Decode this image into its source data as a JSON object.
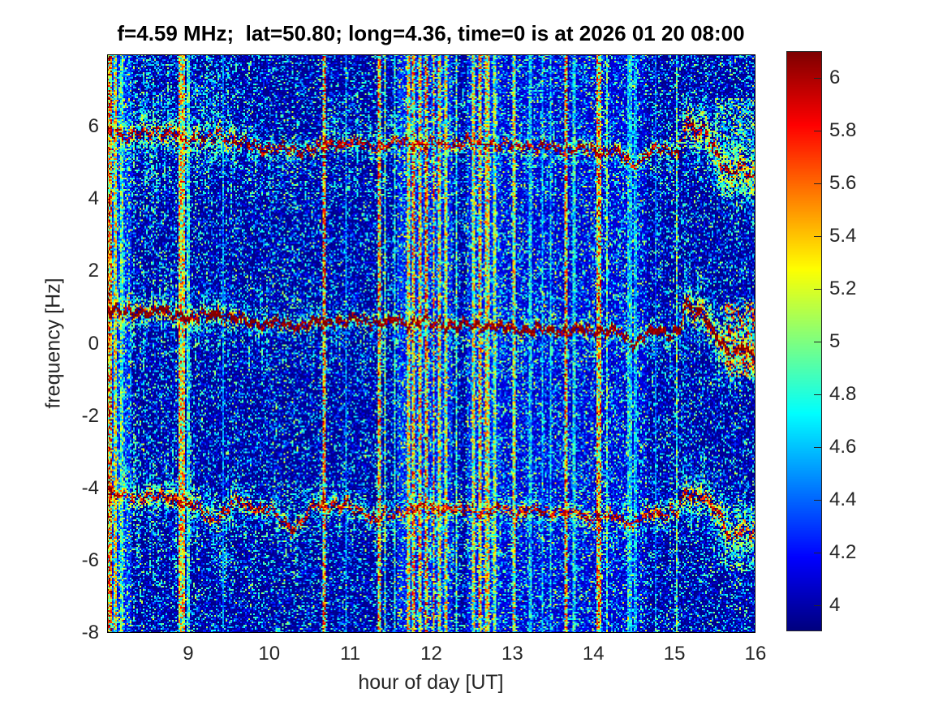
{
  "title": "f=4.59 MHz;  lat=50.80; long=4.36, time=0 is at 2026 01 20 08:00",
  "axes": {
    "xlabel": "hour of day [UT]",
    "ylabel": "frequency [Hz]",
    "xticks": [
      9,
      10,
      11,
      12,
      13,
      14,
      15,
      16
    ],
    "yticks": [
      6,
      4,
      2,
      0,
      -2,
      -4,
      -6,
      -8
    ],
    "xlim": [
      8,
      16
    ],
    "ylim": [
      -8,
      8
    ],
    "tick_color": "#262626",
    "box_color": "#000000"
  },
  "colorbar": {
    "ticks": [
      6,
      5.8,
      5.6,
      5.4,
      5.2,
      5,
      4.8,
      4.6,
      4.4,
      4.2,
      4
    ],
    "cmin": 3.9,
    "cmax": 6.1,
    "colormap": "jet"
  },
  "chart_data": {
    "type": "heatmap",
    "title": "f=4.59 MHz;  lat=50.80; long=4.36, time=0 is at 2026 01 20 08:00",
    "xlabel": "hour of day [UT]",
    "ylabel": "frequency [Hz]",
    "xlim": [
      8,
      16
    ],
    "ylim": [
      -8,
      8
    ],
    "clim": [
      3.9,
      6.1
    ],
    "colormap": "jet",
    "xticks": [
      9,
      10,
      11,
      12,
      13,
      14,
      15,
      16
    ],
    "yticks": [
      6,
      4,
      2,
      0,
      -2,
      -4,
      -6,
      -8
    ],
    "colorbar_ticks": [
      6,
      5.8,
      5.6,
      5.4,
      5.2,
      5,
      4.8,
      4.6,
      4.4,
      4.2,
      4
    ],
    "description": "HF Doppler sounding spectrogram, 4.59 MHz, Brussels (lat 50.80, long 4.36). Blue noise background (~4.0) with three wavy Doppler traces near +5.5 Hz, +0.6 Hz and -4.6 Hz, and many vertical broadband interference stripes reaching values 5.5-6.1.",
    "doppler_traces": [
      {
        "name": "upper-trace",
        "core_prob": 0.6,
        "core_amp": 1.75,
        "waypoints": [
          [
            8.0,
            5.9
          ],
          [
            8.3,
            5.75
          ],
          [
            8.6,
            5.9
          ],
          [
            9.0,
            5.65
          ],
          [
            9.4,
            5.75
          ],
          [
            9.7,
            5.5
          ],
          [
            10.0,
            5.45
          ],
          [
            10.4,
            5.35
          ],
          [
            10.7,
            5.5
          ],
          [
            11.0,
            5.55
          ],
          [
            11.3,
            5.5
          ],
          [
            11.7,
            5.55
          ],
          [
            12.0,
            5.5
          ],
          [
            12.4,
            5.55
          ],
          [
            12.8,
            5.5
          ],
          [
            13.2,
            5.45
          ],
          [
            13.6,
            5.4
          ],
          [
            14.0,
            5.35
          ],
          [
            14.3,
            5.3
          ],
          [
            14.5,
            4.95
          ],
          [
            14.7,
            5.3
          ],
          [
            14.9,
            5.35
          ],
          [
            15.05,
            5.3
          ],
          [
            15.15,
            6.2
          ],
          [
            15.25,
            5.8
          ],
          [
            15.35,
            6.0
          ],
          [
            15.45,
            5.6
          ],
          [
            15.6,
            4.9
          ],
          [
            15.7,
            4.6
          ],
          [
            15.85,
            5.0
          ],
          [
            16.0,
            4.5
          ]
        ],
        "sigma_intervals": [
          [
            8,
            9.6,
            0.5
          ],
          [
            9.6,
            15.1,
            0.28
          ],
          [
            15.1,
            16,
            0.8
          ]
        ]
      },
      {
        "name": "middle-trace",
        "core_prob": 0.8,
        "core_amp": 1.95,
        "waypoints": [
          [
            8.0,
            1.0
          ],
          [
            8.3,
            0.8
          ],
          [
            8.6,
            0.95
          ],
          [
            9.0,
            0.7
          ],
          [
            9.4,
            0.8
          ],
          [
            9.7,
            0.6
          ],
          [
            10.0,
            0.55
          ],
          [
            10.4,
            0.5
          ],
          [
            10.7,
            0.6
          ],
          [
            11.0,
            0.65
          ],
          [
            11.3,
            0.6
          ],
          [
            11.7,
            0.6
          ],
          [
            12.0,
            0.55
          ],
          [
            12.4,
            0.5
          ],
          [
            12.8,
            0.45
          ],
          [
            13.2,
            0.4
          ],
          [
            13.6,
            0.35
          ],
          [
            14.0,
            0.35
          ],
          [
            14.3,
            0.3
          ],
          [
            14.5,
            0.0
          ],
          [
            14.7,
            0.3
          ],
          [
            14.9,
            0.35
          ],
          [
            15.05,
            0.3
          ],
          [
            15.15,
            1.1
          ],
          [
            15.25,
            0.8
          ],
          [
            15.35,
            0.9
          ],
          [
            15.45,
            0.5
          ],
          [
            15.6,
            -0.1
          ],
          [
            15.7,
            -0.4
          ],
          [
            15.85,
            0.0
          ],
          [
            16.0,
            -0.4
          ]
        ],
        "sigma_intervals": [
          [
            8,
            9.6,
            0.45
          ],
          [
            9.6,
            15.1,
            0.25
          ],
          [
            15.1,
            16,
            0.7
          ]
        ]
      },
      {
        "name": "lower-trace",
        "core_prob": 0.6,
        "core_amp": 1.65,
        "waypoints": [
          [
            8.0,
            -4.1
          ],
          [
            8.3,
            -4.3
          ],
          [
            8.6,
            -4.2
          ],
          [
            9.0,
            -4.4
          ],
          [
            9.3,
            -4.85
          ],
          [
            9.6,
            -4.4
          ],
          [
            10.0,
            -4.6
          ],
          [
            10.3,
            -5.1
          ],
          [
            10.6,
            -4.45
          ],
          [
            11.0,
            -4.5
          ],
          [
            11.3,
            -4.85
          ],
          [
            11.7,
            -4.6
          ],
          [
            12.0,
            -4.55
          ],
          [
            12.4,
            -4.6
          ],
          [
            12.8,
            -4.6
          ],
          [
            13.2,
            -4.65
          ],
          [
            13.6,
            -4.7
          ],
          [
            14.0,
            -4.75
          ],
          [
            14.3,
            -4.8
          ],
          [
            14.5,
            -5.0
          ],
          [
            14.7,
            -4.7
          ],
          [
            14.9,
            -4.65
          ],
          [
            15.05,
            -4.6
          ],
          [
            15.15,
            -4.05
          ],
          [
            15.25,
            -4.3
          ],
          [
            15.35,
            -4.15
          ],
          [
            15.45,
            -4.5
          ],
          [
            15.6,
            -5.0
          ],
          [
            15.7,
            -5.45
          ],
          [
            15.85,
            -5.1
          ],
          [
            16.0,
            -5.3
          ]
        ],
        "sigma_intervals": [
          [
            8,
            9.6,
            0.4
          ],
          [
            9.6,
            14.6,
            0.3
          ],
          [
            14.6,
            15.1,
            0.4
          ],
          [
            15.1,
            16,
            0.6
          ]
        ]
      }
    ],
    "interference_stripes": [
      [
        8.03,
        0.07,
        2.1
      ],
      [
        8.1,
        0.05,
        1.6
      ],
      [
        8.18,
        0.02,
        1.2
      ],
      [
        8.92,
        0.06,
        1.8
      ],
      [
        9.0,
        0.02,
        1.1
      ],
      [
        9.43,
        0.02,
        0.65
      ],
      [
        10.68,
        0.04,
        2.0
      ],
      [
        10.95,
        0.02,
        0.7
      ],
      [
        11.36,
        0.035,
        1.9
      ],
      [
        11.43,
        0.02,
        1.3
      ],
      [
        11.55,
        0.02,
        1.05
      ],
      [
        11.72,
        0.03,
        1.7
      ],
      [
        11.79,
        0.04,
        1.9
      ],
      [
        11.87,
        0.04,
        1.8
      ],
      [
        11.95,
        0.04,
        2.0
      ],
      [
        12.03,
        0.03,
        1.9
      ],
      [
        12.1,
        0.03,
        1.7
      ],
      [
        12.18,
        0.03,
        1.6
      ],
      [
        12.3,
        0.02,
        1.2
      ],
      [
        12.52,
        0.05,
        1.6
      ],
      [
        12.6,
        0.05,
        1.8
      ],
      [
        12.69,
        0.05,
        1.7
      ],
      [
        12.78,
        0.03,
        1.4
      ],
      [
        12.9,
        0.015,
        1.0
      ],
      [
        13.02,
        0.03,
        1.6
      ],
      [
        13.12,
        0.015,
        0.85
      ],
      [
        13.22,
        0.02,
        0.95
      ],
      [
        13.37,
        0.02,
        0.8
      ],
      [
        13.47,
        0.02,
        0.9
      ],
      [
        13.66,
        0.04,
        2.0
      ],
      [
        13.76,
        0.02,
        1.05
      ],
      [
        14.07,
        0.04,
        1.95
      ],
      [
        14.17,
        0.02,
        1.25
      ],
      [
        14.45,
        0.05,
        0.9
      ],
      [
        14.53,
        0.04,
        0.8
      ],
      [
        14.77,
        0.015,
        0.6
      ],
      [
        15.03,
        0.015,
        1.3
      ],
      [
        15.12,
        0.01,
        0.8
      ]
    ],
    "regional_boosts": [
      [
        8.0,
        8.3,
        0.1,
        0.35
      ],
      [
        11.58,
        12.25,
        0.08,
        0.3
      ],
      [
        12.45,
        12.85,
        0.08,
        0.28
      ],
      [
        12.85,
        14.65,
        0.03,
        0.18
      ]
    ],
    "clouds": [
      [
        15.5,
        16.0,
        4.1,
        6.8,
        0.4,
        4.35,
        0.95
      ],
      [
        15.62,
        16.0,
        -0.9,
        1.15,
        0.5,
        4.6,
        1.5
      ],
      [
        15.55,
        16.0,
        -6.3,
        -4.4,
        0.28,
        4.4,
        0.9
      ],
      [
        8.0,
        9.6,
        6.3,
        8.0,
        0.1,
        4.3,
        0.55
      ]
    ],
    "spike_prob": [
      [
        8,
        9.6,
        0.42
      ],
      [
        9.6,
        12.3,
        0.26
      ],
      [
        12.3,
        15.1,
        0.15
      ],
      [
        15.1,
        16,
        0.3
      ]
    ],
    "noise": {
      "base": 3.92,
      "amp": 1.15,
      "pow": 4
    }
  }
}
